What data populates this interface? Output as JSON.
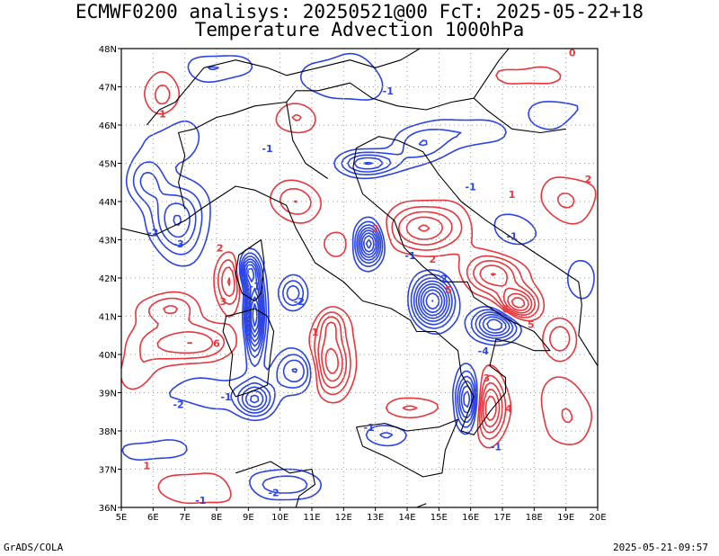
{
  "title_line1": "ECMWF0200 analisys: 20250521@00 FcT: 2025-05-22+18",
  "title_line2": "Temperature Advection 1000hPa",
  "lat_labels": [
    "36N",
    "37N",
    "38N",
    "39N",
    "40N",
    "41N",
    "42N",
    "43N",
    "44N",
    "45N",
    "46N",
    "47N",
    "48N"
  ],
  "lon_labels": [
    "5E",
    "6E",
    "7E",
    "8E",
    "9E",
    "10E",
    "11E",
    "12E",
    "13E",
    "14E",
    "15E",
    "16E",
    "17E",
    "18E",
    "19E",
    "20E"
  ],
  "footer_left": "GrADS/COLA",
  "footer_right": "2025-05-21-09:57",
  "colors": {
    "warm_advection": "#e8363c",
    "cold_advection": "#2b44e6",
    "coastline": "#000000",
    "grid": "#9a9a9a"
  },
  "contour_labels": [
    {
      "text": "1",
      "lon": 6.3,
      "lat": 46.2,
      "sign": "pos"
    },
    {
      "text": "1",
      "lon": 5.8,
      "lat": 37.0,
      "sign": "pos"
    },
    {
      "text": "2",
      "lon": 8.1,
      "lat": 42.7,
      "sign": "pos"
    },
    {
      "text": "3",
      "lon": 8.2,
      "lat": 41.3,
      "sign": "pos"
    },
    {
      "text": "6",
      "lon": 8.0,
      "lat": 40.2,
      "sign": "pos"
    },
    {
      "text": "1",
      "lon": 11.1,
      "lat": 40.5,
      "sign": "pos"
    },
    {
      "text": "2",
      "lon": 13.0,
      "lat": 43.2,
      "sign": "pos"
    },
    {
      "text": "2",
      "lon": 14.8,
      "lat": 42.4,
      "sign": "pos"
    },
    {
      "text": "5",
      "lon": 15.3,
      "lat": 41.6,
      "sign": "pos"
    },
    {
      "text": "5",
      "lon": 17.9,
      "lat": 40.7,
      "sign": "pos"
    },
    {
      "text": "6",
      "lon": 17.1,
      "lat": 41.1,
      "sign": "pos"
    },
    {
      "text": "3",
      "lon": 16.5,
      "lat": 39.3,
      "sign": "pos"
    },
    {
      "text": "4",
      "lon": 17.2,
      "lat": 38.5,
      "sign": "pos"
    },
    {
      "text": "1",
      "lon": 17.3,
      "lat": 44.1,
      "sign": "pos"
    },
    {
      "text": "0",
      "lon": 19.2,
      "lat": 47.8,
      "sign": "pos"
    },
    {
      "text": "2",
      "lon": 19.7,
      "lat": 44.5,
      "sign": "pos"
    },
    {
      "text": "-1",
      "lon": 13.4,
      "lat": 46.8,
      "sign": "neg"
    },
    {
      "text": "-1",
      "lon": 9.6,
      "lat": 45.3,
      "sign": "neg"
    },
    {
      "text": "-1",
      "lon": 16.0,
      "lat": 44.3,
      "sign": "neg"
    },
    {
      "text": "-1",
      "lon": 17.3,
      "lat": 43.0,
      "sign": "neg"
    },
    {
      "text": "-2",
      "lon": 6.0,
      "lat": 43.1,
      "sign": "neg"
    },
    {
      "text": "-3",
      "lon": 6.8,
      "lat": 42.8,
      "sign": "neg"
    },
    {
      "text": "-1",
      "lon": 9.2,
      "lat": 41.7,
      "sign": "neg"
    },
    {
      "text": "-2",
      "lon": 10.6,
      "lat": 41.3,
      "sign": "neg"
    },
    {
      "text": "-1",
      "lon": 14.1,
      "lat": 42.5,
      "sign": "neg"
    },
    {
      "text": "-2",
      "lon": 15.1,
      "lat": 41.9,
      "sign": "neg"
    },
    {
      "text": "-4",
      "lon": 16.4,
      "lat": 40.0,
      "sign": "neg"
    },
    {
      "text": "-2",
      "lon": 6.8,
      "lat": 38.6,
      "sign": "neg"
    },
    {
      "text": "-1",
      "lon": 8.3,
      "lat": 38.8,
      "sign": "neg"
    },
    {
      "text": "-1",
      "lon": 12.8,
      "lat": 38.0,
      "sign": "neg"
    },
    {
      "text": "-1",
      "lon": 16.8,
      "lat": 37.5,
      "sign": "neg"
    },
    {
      "text": "-2",
      "lon": 9.8,
      "lat": 36.3,
      "sign": "neg"
    },
    {
      "text": "-1",
      "lon": 7.5,
      "lat": 36.1,
      "sign": "neg"
    }
  ]
}
